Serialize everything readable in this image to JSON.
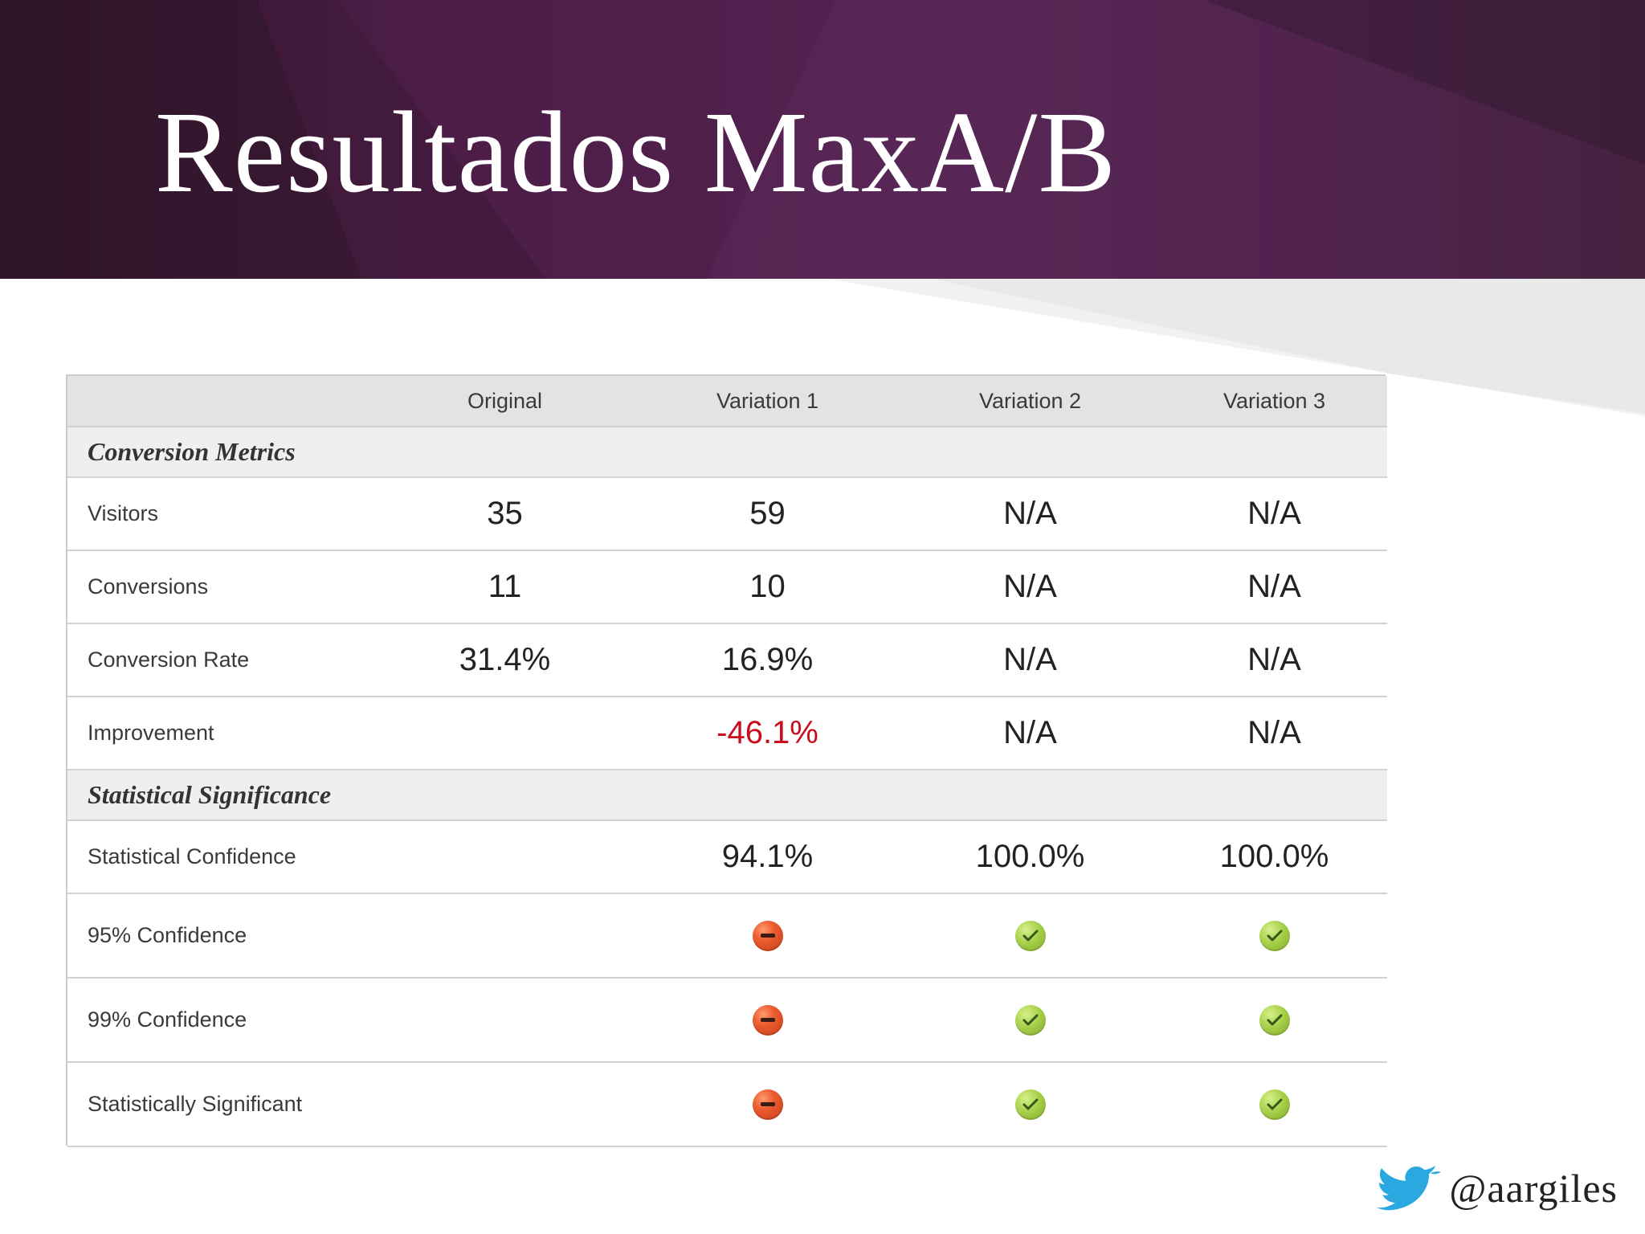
{
  "slide": {
    "title": "Resultados MaxA/B",
    "handle": "@aargiles"
  },
  "table": {
    "columns": [
      "",
      "Original",
      "Variation 1",
      "Variation 2",
      "Variation 3"
    ],
    "sections": [
      {
        "label": "Conversion Metrics",
        "rows": [
          {
            "label": "Visitors",
            "values": [
              "35",
              "59",
              "N/A",
              "N/A"
            ]
          },
          {
            "label": "Conversions",
            "values": [
              "11",
              "10",
              "N/A",
              "N/A"
            ]
          },
          {
            "label": "Conversion Rate",
            "values": [
              "31.4%",
              "16.9%",
              "N/A",
              "N/A"
            ]
          },
          {
            "label": "Improvement",
            "values": [
              "",
              "-46.1%",
              "N/A",
              "N/A"
            ]
          }
        ]
      },
      {
        "label": "Statistical Significance",
        "rows": [
          {
            "label": "Statistical Confidence",
            "values": [
              "",
              "94.1%",
              "100.0%",
              "100.0%"
            ]
          },
          {
            "label": "95% Confidence",
            "icons": [
              "",
              "minus-red-icon",
              "check-green-icon",
              "check-green-icon"
            ]
          },
          {
            "label": "99% Confidence",
            "icons": [
              "",
              "minus-red-icon",
              "check-green-icon",
              "check-green-icon"
            ]
          },
          {
            "label": "Statistically Significant",
            "icons": [
              "",
              "minus-red-icon",
              "check-green-icon",
              "check-green-icon"
            ]
          }
        ]
      }
    ]
  },
  "colors": {
    "header_background": "#4a1d45",
    "negative_value": "#c90d1f",
    "fail_icon": "#ec5f31",
    "pass_icon": "#a7d14a",
    "twitter_bird": "#2aa9e0"
  },
  "icons": {
    "twitter": "twitter-bird-icon"
  }
}
